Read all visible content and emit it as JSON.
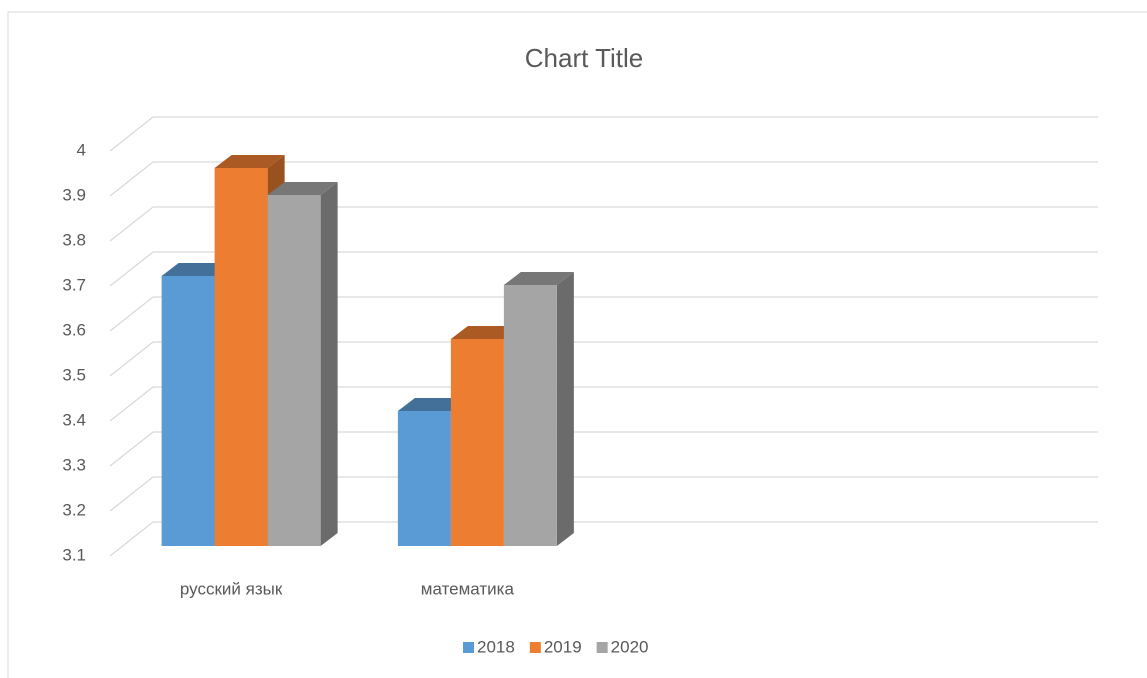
{
  "chart_data": {
    "type": "bar3d",
    "title": "Chart Title",
    "categories": [
      "русский язык",
      "математика",
      null,
      null
    ],
    "series": [
      {
        "name": "2018",
        "color": "#5b9bd5",
        "values": [
          3.7,
          3.4,
          null,
          null
        ]
      },
      {
        "name": "2019",
        "color": "#ed7d31",
        "values": [
          3.94,
          3.56,
          null,
          null
        ]
      },
      {
        "name": "2020",
        "color": "#a5a5a5",
        "values": [
          3.88,
          3.68,
          null,
          null
        ]
      }
    ],
    "ylim": [
      3.1,
      4
    ],
    "yticks": [
      3.1,
      3.2,
      3.3,
      3.4,
      3.5,
      3.6,
      3.7,
      3.8,
      3.9,
      4
    ],
    "grid": true,
    "legend": "bottom"
  }
}
